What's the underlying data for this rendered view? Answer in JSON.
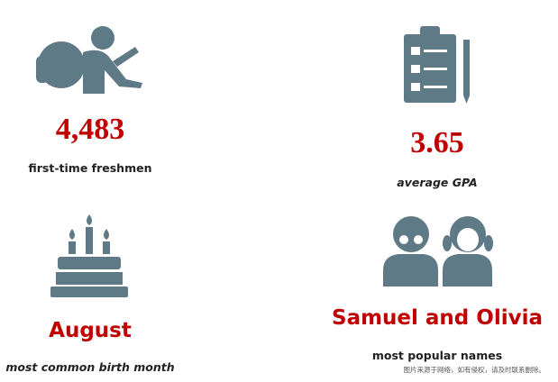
{
  "stats": [
    {
      "value": "4,483",
      "label": "first-time freshmen"
    },
    {
      "value": "3.65",
      "label": "average GPA"
    },
    {
      "value": "August",
      "label": "most common birth month"
    },
    {
      "value": "Samuel and Olivia",
      "label": "most popular names"
    }
  ],
  "watermark": "图片来源于网络，如有侵权，请及时联系删除。"
}
